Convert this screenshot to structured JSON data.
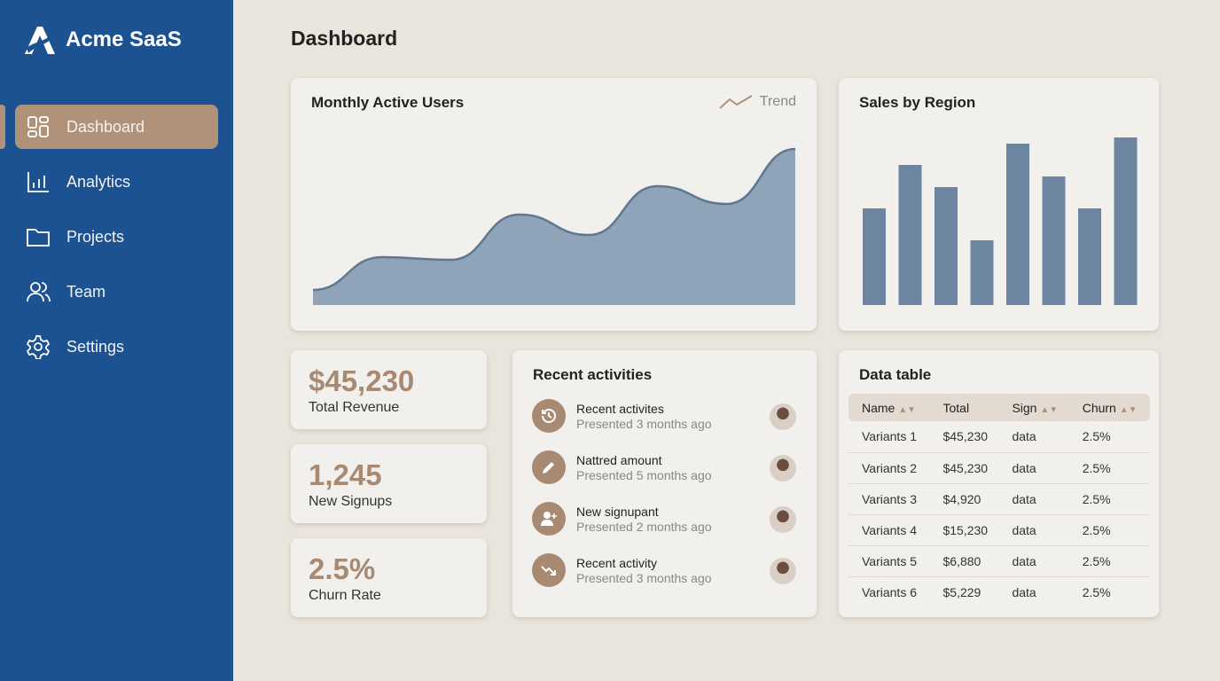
{
  "app": {
    "name": "Acme SaaS"
  },
  "sidebar": {
    "items": [
      {
        "label": "Dashboard",
        "icon": "dashboard-icon",
        "active": true
      },
      {
        "label": "Analytics",
        "icon": "bar-chart-icon"
      },
      {
        "label": "Projects",
        "icon": "folder-icon"
      },
      {
        "label": "Team",
        "icon": "users-icon"
      },
      {
        "label": "Settings",
        "icon": "gear-icon"
      }
    ]
  },
  "page": {
    "title": "Dashboard"
  },
  "mau": {
    "title": "Monthly Active Users",
    "trend_label": "Trend"
  },
  "sales": {
    "title": "Sales by Region"
  },
  "kpis": [
    {
      "value": "$45,230",
      "label": "Total Revenue"
    },
    {
      "value": "1,245",
      "label": "New Signups"
    },
    {
      "value": "2.5%",
      "label": "Churn Rate"
    }
  ],
  "activities": {
    "title": "Recent activities",
    "items": [
      {
        "title": "Recent activites",
        "subtitle": "Presented 3 months ago",
        "icon": "history-icon"
      },
      {
        "title": "Nattred amount",
        "subtitle": "Presented 5 months ago",
        "icon": "pencil-icon"
      },
      {
        "title": "New signupant",
        "subtitle": "Presented 2 months ago",
        "icon": "user-plus-icon"
      },
      {
        "title": "Recent activity",
        "subtitle": "Presented 3 months ago",
        "icon": "trend-down-icon"
      }
    ]
  },
  "table": {
    "title": "Data table",
    "columns": [
      "Name",
      "Total",
      "Sign",
      "Churn"
    ],
    "rows": [
      [
        "Variants 1",
        "$45,230",
        "data",
        "2.5%"
      ],
      [
        "Variants 2",
        "$45,230",
        "data",
        "2.5%"
      ],
      [
        "Variants 3",
        "$4,920",
        "data",
        "2.5%"
      ],
      [
        "Variants 4",
        "$15,230",
        "data",
        "2.5%"
      ],
      [
        "Variants 5",
        "$6,880",
        "data",
        "2.5%"
      ],
      [
        "Variants 6",
        "$5,229",
        "data",
        "2.5%"
      ]
    ]
  },
  "colors": {
    "sidebar": "#1c5291",
    "accent": "#b0917a",
    "chart": "#6c86a2"
  },
  "chart_data": [
    {
      "type": "area",
      "title": "Monthly Active Users",
      "values": [
        17,
        54,
        51,
        102,
        79,
        134,
        114,
        176
      ],
      "grid": false
    },
    {
      "type": "bar",
      "title": "Sales by Region",
      "values": [
        109,
        158,
        133,
        73,
        182,
        145,
        109,
        189
      ],
      "grid": false
    }
  ]
}
